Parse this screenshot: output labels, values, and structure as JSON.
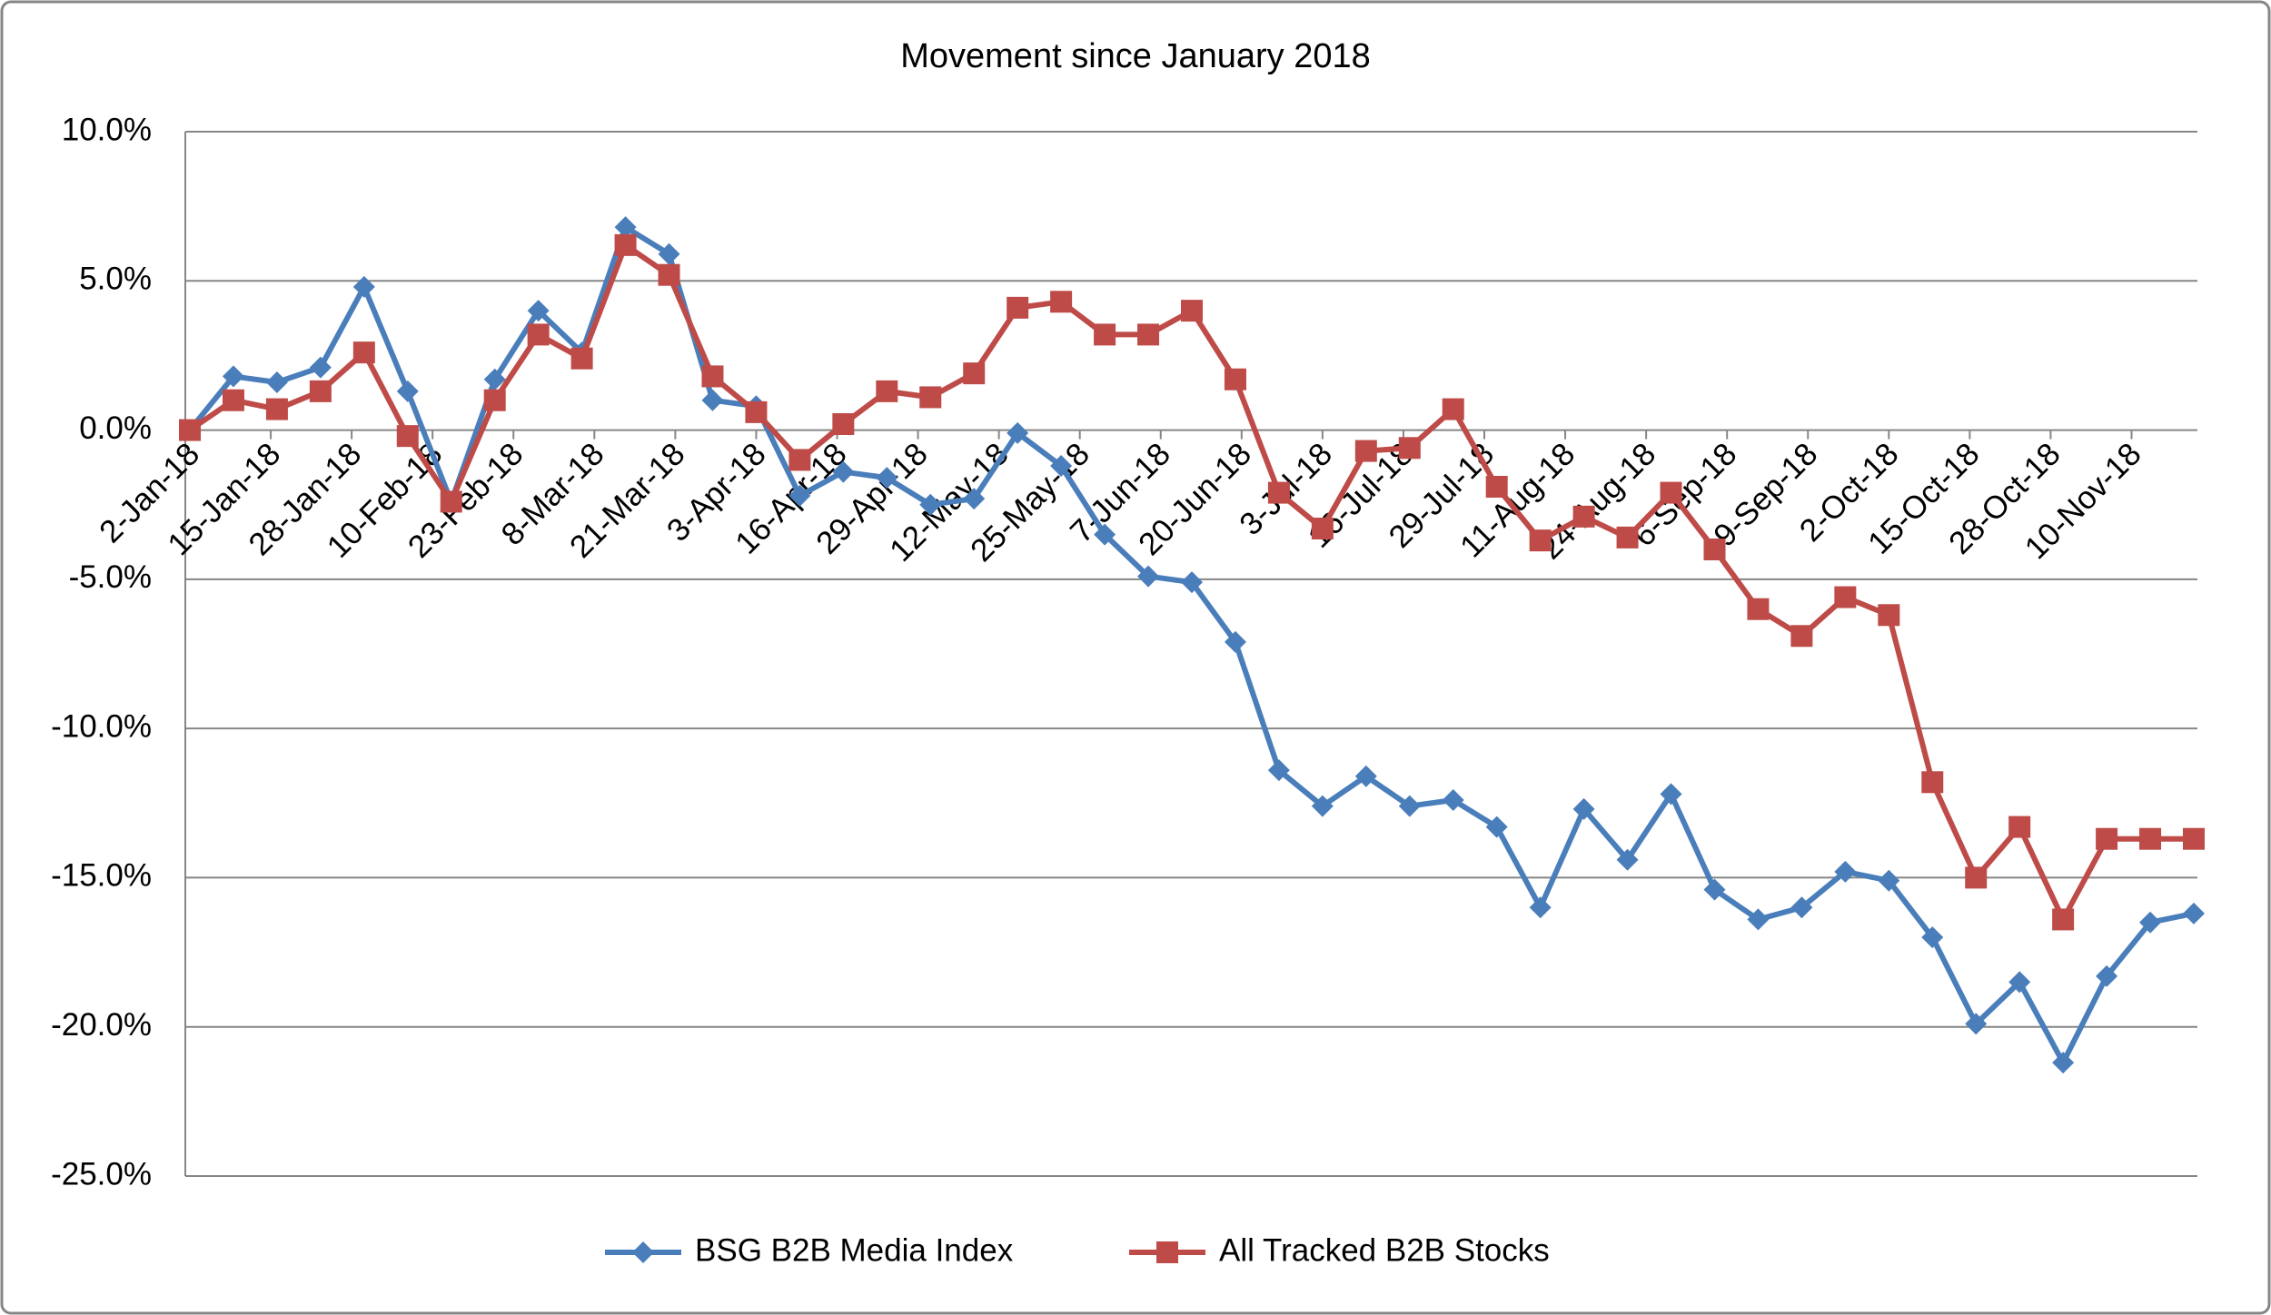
{
  "chart_data": {
    "type": "line",
    "title": "Movement since January 2018",
    "x": [
      "2018-01-02",
      "2018-01-09",
      "2018-01-16",
      "2018-01-23",
      "2018-01-30",
      "2018-02-06",
      "2018-02-13",
      "2018-02-20",
      "2018-02-27",
      "2018-03-06",
      "2018-03-13",
      "2018-03-20",
      "2018-03-27",
      "2018-04-03",
      "2018-04-10",
      "2018-04-17",
      "2018-04-24",
      "2018-05-01",
      "2018-05-08",
      "2018-05-15",
      "2018-05-22",
      "2018-05-29",
      "2018-06-05",
      "2018-06-12",
      "2018-06-19",
      "2018-06-26",
      "2018-07-03",
      "2018-07-10",
      "2018-07-17",
      "2018-07-24",
      "2018-07-31",
      "2018-08-07",
      "2018-08-14",
      "2018-08-21",
      "2018-08-28",
      "2018-09-04",
      "2018-09-11",
      "2018-09-18",
      "2018-09-25",
      "2018-10-02",
      "2018-10-09",
      "2018-10-16",
      "2018-10-23",
      "2018-10-30",
      "2018-11-06",
      "2018-11-13",
      "2018-11-20"
    ],
    "series": [
      {
        "name": "BSG B2B Media Index",
        "color": "#4a7ebb",
        "marker": "diamond",
        "values": [
          0,
          1.8,
          1.6,
          2.1,
          4.8,
          1.3,
          -2.4,
          1.7,
          4.0,
          2.6,
          6.8,
          5.9,
          1.0,
          0.8,
          -2.2,
          -1.4,
          -1.6,
          -2.5,
          -2.3,
          -0.1,
          -1.2,
          -3.5,
          -4.9,
          -5.1,
          -7.1,
          -11.4,
          -12.6,
          -11.6,
          -12.6,
          -12.4,
          -13.3,
          -16.0,
          -12.7,
          -14.4,
          -12.2,
          -15.4,
          -16.4,
          -16.0,
          -14.8,
          -15.1,
          -17.0,
          -19.9,
          -18.5,
          -21.2,
          -18.3,
          -16.5,
          -16.2
        ]
      },
      {
        "name": "All Tracked B2B Stocks",
        "color": "#be4b48",
        "marker": "square",
        "values": [
          0,
          1.0,
          0.7,
          1.3,
          2.6,
          -0.2,
          -2.4,
          1.0,
          3.2,
          2.4,
          6.2,
          5.2,
          1.8,
          0.6,
          -1.0,
          0.2,
          1.3,
          1.1,
          1.9,
          4.1,
          4.3,
          3.2,
          3.2,
          4.0,
          1.7,
          -2.1,
          -3.3,
          -0.7,
          -0.6,
          0.7,
          -1.9,
          -3.7,
          -2.9,
          -3.6,
          -2.1,
          -4.0,
          -6.0,
          -6.9,
          -5.6,
          -6.2,
          -11.8,
          -15.0,
          -13.3,
          -16.4,
          -13.7,
          -13.7,
          -13.7
        ]
      }
    ],
    "xlim": [
      "2018-01-02",
      "2018-11-20"
    ],
    "xticks": [
      {
        "value": "2018-01-02",
        "label": "2-Jan-18"
      },
      {
        "value": "2018-01-15",
        "label": "15-Jan-18"
      },
      {
        "value": "2018-01-28",
        "label": "28-Jan-18"
      },
      {
        "value": "2018-02-10",
        "label": "10-Feb-18"
      },
      {
        "value": "2018-02-23",
        "label": "23-Feb-18"
      },
      {
        "value": "2018-03-08",
        "label": "8-Mar-18"
      },
      {
        "value": "2018-03-21",
        "label": "21-Mar-18"
      },
      {
        "value": "2018-04-03",
        "label": "3-Apr-18"
      },
      {
        "value": "2018-04-16",
        "label": "16-Apr-18"
      },
      {
        "value": "2018-04-29",
        "label": "29-Apr-18"
      },
      {
        "value": "2018-05-12",
        "label": "12-May-18"
      },
      {
        "value": "2018-05-25",
        "label": "25-May-18"
      },
      {
        "value": "2018-06-07",
        "label": "7-Jun-18"
      },
      {
        "value": "2018-06-20",
        "label": "20-Jun-18"
      },
      {
        "value": "2018-07-03",
        "label": "3-Jul-18"
      },
      {
        "value": "2018-07-16",
        "label": "16-Jul-18"
      },
      {
        "value": "2018-07-29",
        "label": "29-Jul-18"
      },
      {
        "value": "2018-08-11",
        "label": "11-Aug-18"
      },
      {
        "value": "2018-08-24",
        "label": "24-Aug-18"
      },
      {
        "value": "2018-09-06",
        "label": "6-Sep-18"
      },
      {
        "value": "2018-09-19",
        "label": "19-Sep-18"
      },
      {
        "value": "2018-10-02",
        "label": "2-Oct-18"
      },
      {
        "value": "2018-10-15",
        "label": "15-Oct-18"
      },
      {
        "value": "2018-10-28",
        "label": "28-Oct-18"
      },
      {
        "value": "2018-11-10",
        "label": "10-Nov-18"
      }
    ],
    "ylim": [
      -25,
      10
    ],
    "yticks": [
      {
        "value": -25,
        "label": "-25.0%"
      },
      {
        "value": -20,
        "label": "-20.0%"
      },
      {
        "value": -15,
        "label": "-15.0%"
      },
      {
        "value": -10,
        "label": "-10.0%"
      },
      {
        "value": -5,
        "label": "-5.0%"
      },
      {
        "value": 0,
        "label": "0.0%"
      },
      {
        "value": 5,
        "label": "5.0%"
      },
      {
        "value": 10,
        "label": "10.0%"
      }
    ],
    "grid": true,
    "legend": "bottom"
  }
}
